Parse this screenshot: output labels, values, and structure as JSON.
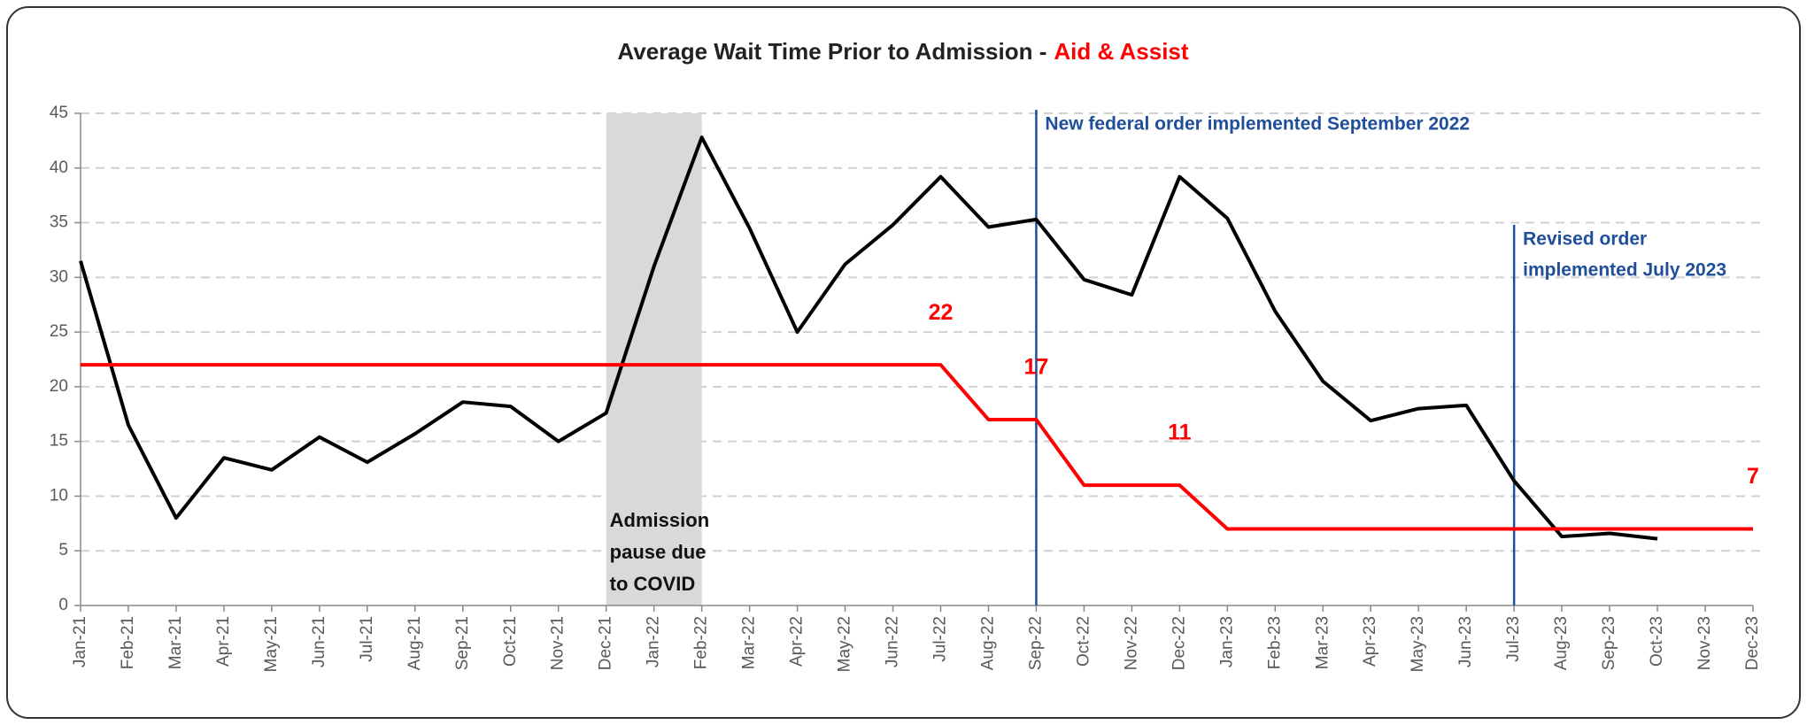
{
  "chart_data": {
    "type": "line",
    "title_parts": [
      "Average Wait Time Prior to Admission -",
      "Aid & Assist"
    ],
    "categories": [
      "Jan-21",
      "Feb-21",
      "Mar-21",
      "Apr-21",
      "May-21",
      "Jun-21",
      "Jul-21",
      "Aug-21",
      "Sep-21",
      "Oct-21",
      "Nov-21",
      "Dec-21",
      "Jan-22",
      "Feb-22",
      "Mar-22",
      "Apr-22",
      "May-22",
      "Jun-22",
      "Jul-22",
      "Aug-22",
      "Sep-22",
      "Oct-22",
      "Nov-22",
      "Dec-22",
      "Jan-23",
      "Feb-23",
      "Mar-23",
      "Apr-23",
      "May-23",
      "Jun-23",
      "Jul-23",
      "Aug-23",
      "Sep-23",
      "Oct-23",
      "Nov-23",
      "Dec-23"
    ],
    "series": [
      {
        "color": "#000000",
        "values": [
          31.5,
          16.5,
          8,
          13.5,
          12.4,
          15.4,
          13.1,
          15.7,
          18.6,
          18.2,
          15,
          17.6,
          31,
          42.8,
          34.5,
          25,
          31.2,
          34.8,
          39.2,
          34.6,
          35.3,
          29.8,
          28.4,
          39.2,
          35.4,
          26.9,
          20.5,
          16.9,
          18,
          18.3,
          11.4,
          6.3,
          6.6,
          6.1,
          null,
          null
        ]
      },
      {
        "color": "#ff0000",
        "values": [
          22,
          22,
          22,
          22,
          22,
          22,
          22,
          22,
          22,
          22,
          22,
          22,
          22,
          22,
          22,
          22,
          22,
          22,
          22,
          17,
          17,
          11,
          11,
          11,
          7,
          7,
          7,
          7,
          7,
          7,
          7,
          7,
          7,
          7,
          7,
          7
        ]
      }
    ],
    "ylim": [
      0,
      45
    ],
    "yticks": [
      0,
      5,
      10,
      15,
      20,
      25,
      30,
      35,
      40,
      45
    ],
    "grid": true,
    "shaded_span": {
      "from": "Dec-21",
      "to": "Feb-22",
      "color": "#d9d9d9",
      "lines": [
        "Admission",
        "pause due",
        "to COVID"
      ]
    },
    "vlines": [
      {
        "x": "Sep-22",
        "color": "#1f4e9a",
        "lines": [
          "New federal order implemented September 2022"
        ]
      },
      {
        "x": "Jul-23",
        "color": "#1f4e9a",
        "lines": [
          "Revised order",
          "implemented July 2023"
        ]
      }
    ]
  }
}
